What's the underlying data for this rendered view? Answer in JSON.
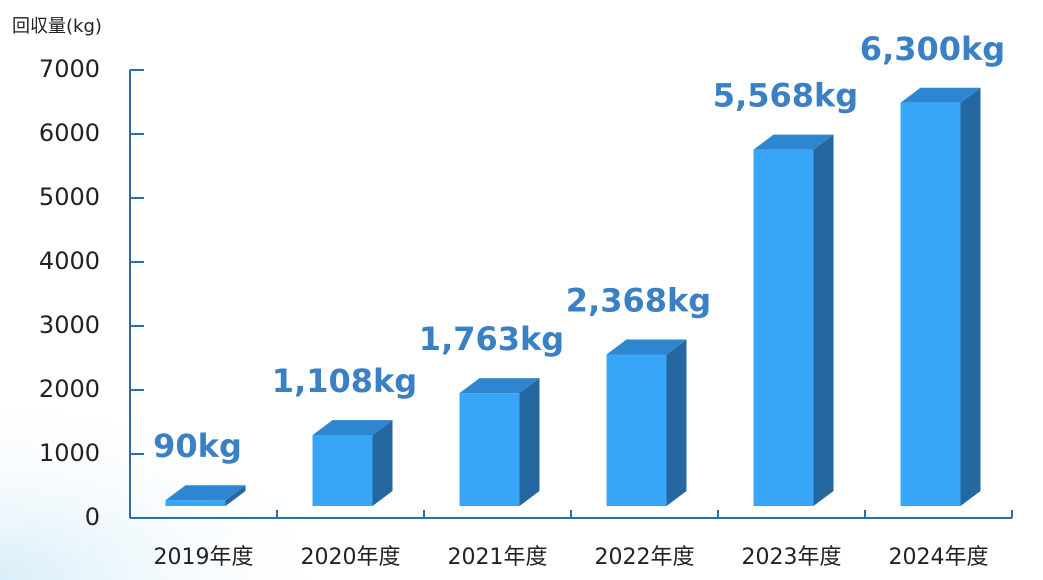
{
  "chart_data": {
    "type": "bar3d",
    "y_label": "回収量(kg)",
    "categories": [
      "2019年度",
      "2020年度",
      "2021年度",
      "2022年度",
      "2023年度",
      "2024年度"
    ],
    "values": [
      90,
      1108,
      1763,
      2368,
      5568,
      6300
    ],
    "value_labels": [
      "90kg",
      "1,108kg",
      "1,763kg",
      "2,368kg",
      "5,568kg",
      "6,300kg"
    ],
    "color": "#38a6f8",
    "ylim": [
      0,
      7000
    ],
    "yticks": [
      0,
      1000,
      2000,
      3000,
      4000,
      5000,
      6000,
      7000
    ]
  }
}
